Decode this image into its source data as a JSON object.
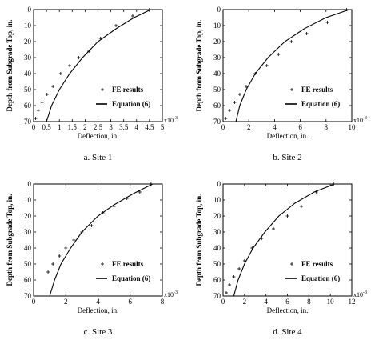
{
  "chart_data": [
    {
      "type": "scatter",
      "caption": "a.  Site 1",
      "xlabel": "Deflection, in.",
      "ylabel": "Depth from Subgrade Top, in.",
      "x_multiplier": "x10",
      "x_multiplier_exp": "-3",
      "xlim": [
        0,
        5
      ],
      "ylim": [
        0,
        70
      ],
      "y_inverted": true,
      "xticks": [
        "0",
        "0.5",
        "1",
        "1.5",
        "2",
        "2.5",
        "3",
        "3.5",
        "4",
        "4.5",
        "5"
      ],
      "yticks": [
        "0",
        "10",
        "20",
        "30",
        "40",
        "50",
        "60",
        "70"
      ],
      "legend_position": "lower-right",
      "series": [
        {
          "name": "FE results",
          "marker": "+",
          "x": [
            0.08,
            0.18,
            0.33,
            0.52,
            0.75,
            1.05,
            1.4,
            1.75,
            2.15,
            2.6,
            3.2,
            3.85,
            4.5
          ],
          "y": [
            68,
            63,
            58,
            53,
            48,
            40,
            35,
            30,
            26,
            18,
            10,
            4,
            0
          ]
        },
        {
          "name": "Equation (6)",
          "marker": "line",
          "x": [
            0.5,
            0.7,
            1.0,
            1.4,
            1.9,
            2.5,
            3.2,
            3.9,
            4.55
          ],
          "y": [
            70,
            60,
            50,
            40,
            30,
            20,
            12,
            5,
            0
          ]
        }
      ]
    },
    {
      "type": "scatter",
      "caption": "b.  Site 2",
      "xlabel": "Deflection, in.",
      "ylabel": "Depth from Subgrade Top, in.",
      "x_multiplier": "x10",
      "x_multiplier_exp": "-3",
      "xlim": [
        0,
        10
      ],
      "ylim": [
        0,
        70
      ],
      "y_inverted": true,
      "xticks": [
        "0",
        "2",
        "4",
        "6",
        "8",
        "10"
      ],
      "yticks": [
        "0",
        "10",
        "20",
        "30",
        "40",
        "50",
        "60",
        "70"
      ],
      "legend_position": "lower-right",
      "series": [
        {
          "name": "FE results",
          "marker": "+",
          "x": [
            0.2,
            0.5,
            0.9,
            1.3,
            1.8,
            2.5,
            3.4,
            4.3,
            5.3,
            6.5,
            8.1,
            9.6
          ],
          "y": [
            68,
            63,
            58,
            53,
            48,
            40,
            35,
            28,
            20,
            15,
            8,
            0
          ]
        },
        {
          "name": "Equation (6)",
          "marker": "line",
          "x": [
            1.0,
            1.3,
            1.8,
            2.5,
            3.5,
            4.8,
            6.3,
            8.0,
            9.8
          ],
          "y": [
            70,
            60,
            50,
            40,
            30,
            20,
            12,
            5,
            0
          ]
        }
      ]
    },
    {
      "type": "scatter",
      "caption": "c.  Site 3",
      "xlabel": "Deflection, in.",
      "ylabel": "Depth from Subgrade Top, in.",
      "x_multiplier": "x10",
      "x_multiplier_exp": "-3",
      "xlim": [
        0,
        8
      ],
      "ylim": [
        0,
        70
      ],
      "y_inverted": true,
      "xticks": [
        "0",
        "2",
        "4",
        "6",
        "8"
      ],
      "yticks": [
        "0",
        "10",
        "20",
        "30",
        "40",
        "50",
        "60",
        "70"
      ],
      "legend_position": "lower-right",
      "series": [
        {
          "name": "FE results",
          "marker": "+",
          "x": [
            0.9,
            1.2,
            1.6,
            2.0,
            2.5,
            3.0,
            3.6,
            4.3,
            5.0,
            5.8,
            6.6,
            7.3
          ],
          "y": [
            55,
            50,
            45,
            40,
            35,
            30,
            26,
            18,
            14,
            9,
            5,
            0
          ]
        },
        {
          "name": "Equation (6)",
          "marker": "line",
          "x": [
            1.0,
            1.3,
            1.7,
            2.3,
            3.0,
            4.0,
            5.0,
            6.2,
            7.4
          ],
          "y": [
            70,
            60,
            50,
            40,
            30,
            20,
            13,
            6,
            0
          ]
        }
      ]
    },
    {
      "type": "scatter",
      "caption": "d.  Site 4",
      "xlabel": "Deflection, in.",
      "ylabel": "Depth from Subgrade Top, in.",
      "x_multiplier": "x10",
      "x_multiplier_exp": "-3",
      "xlim": [
        0,
        12
      ],
      "ylim": [
        0,
        70
      ],
      "y_inverted": true,
      "xticks": [
        "0",
        "2",
        "4",
        "6",
        "8",
        "10",
        "12"
      ],
      "yticks": [
        "0",
        "10",
        "20",
        "30",
        "40",
        "50",
        "60",
        "70"
      ],
      "legend_position": "lower-right",
      "series": [
        {
          "name": "FE results",
          "marker": "+",
          "x": [
            0.3,
            0.6,
            1.0,
            1.5,
            2.0,
            2.7,
            3.6,
            4.7,
            6.0,
            7.3,
            8.7,
            10.3
          ],
          "y": [
            68,
            63,
            58,
            53,
            48,
            40,
            34,
            28,
            20,
            14,
            5,
            0
          ]
        },
        {
          "name": "Equation (6)",
          "marker": "line",
          "x": [
            1.0,
            1.4,
            2.0,
            2.8,
            3.9,
            5.2,
            6.7,
            8.5,
            10.4
          ],
          "y": [
            70,
            60,
            50,
            40,
            30,
            20,
            12,
            5,
            0
          ]
        }
      ]
    }
  ]
}
